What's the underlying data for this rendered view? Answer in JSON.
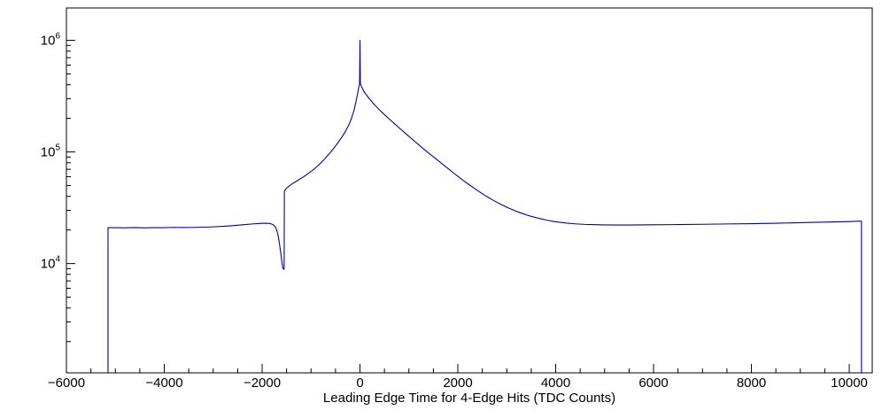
{
  "figure": {
    "background": "#ffffff",
    "frame_color": "#000000"
  },
  "chart_data": {
    "type": "line",
    "title": "",
    "xlabel": "Leading Edge Time for 4-Edge Hits (TDC Counts)",
    "ylabel": "",
    "y_scale": "log",
    "x_range": [
      -6000,
      10470
    ],
    "y_range": [
      1050,
      1950000
    ],
    "grid": false,
    "legend": "none",
    "line_color": "#0000a0",
    "x_ticks": [
      {
        "value": -6000,
        "label": "−6000"
      },
      {
        "value": -4000,
        "label": "−4000"
      },
      {
        "value": -2000,
        "label": "−2000"
      },
      {
        "value": 0,
        "label": "0"
      },
      {
        "value": 2000,
        "label": "2000"
      },
      {
        "value": 4000,
        "label": "4000"
      },
      {
        "value": 6000,
        "label": "6000"
      },
      {
        "value": 8000,
        "label": "8000"
      },
      {
        "value": 10000,
        "label": "10000"
      }
    ],
    "y_ticks": [
      {
        "value": 10000,
        "base": "10",
        "exp": "4"
      },
      {
        "value": 100000,
        "base": "10",
        "exp": "5"
      },
      {
        "value": 1000000,
        "base": "10",
        "exp": "6"
      }
    ],
    "x_minor_step": 500,
    "points": [
      [
        -5150,
        1050
      ],
      [
        -5150,
        21000
      ],
      [
        -5000,
        21000
      ],
      [
        -4800,
        20900
      ],
      [
        -4600,
        21050
      ],
      [
        -4400,
        20900
      ],
      [
        -4200,
        21000
      ],
      [
        -4000,
        21000
      ],
      [
        -3800,
        21100
      ],
      [
        -3600,
        21050
      ],
      [
        -3400,
        21100
      ],
      [
        -3200,
        21200
      ],
      [
        -3000,
        21350
      ],
      [
        -2800,
        21550
      ],
      [
        -2600,
        21850
      ],
      [
        -2400,
        22250
      ],
      [
        -2200,
        22650
      ],
      [
        -2050,
        22900
      ],
      [
        -1950,
        23000
      ],
      [
        -1850,
        22900
      ],
      [
        -1780,
        22400
      ],
      [
        -1720,
        21000
      ],
      [
        -1680,
        18500
      ],
      [
        -1650,
        15500
      ],
      [
        -1620,
        12500
      ],
      [
        -1595,
        10200
      ],
      [
        -1575,
        9100
      ],
      [
        -1560,
        8900
      ],
      [
        -1550,
        9000
      ],
      [
        -1545,
        44000
      ],
      [
        -1520,
        46500
      ],
      [
        -1450,
        49500
      ],
      [
        -1350,
        53000
      ],
      [
        -1250,
        56500
      ],
      [
        -1150,
        60000
      ],
      [
        -1050,
        64500
      ],
      [
        -950,
        69500
      ],
      [
        -850,
        76000
      ],
      [
        -750,
        84000
      ],
      [
        -650,
        94000
      ],
      [
        -550,
        106000
      ],
      [
        -450,
        121000
      ],
      [
        -350,
        140000
      ],
      [
        -280,
        158000
      ],
      [
        -220,
        178000
      ],
      [
        -170,
        202000
      ],
      [
        -120,
        238000
      ],
      [
        -80,
        285000
      ],
      [
        -50,
        330000
      ],
      [
        -25,
        380000
      ],
      [
        -8,
        408000
      ],
      [
        0,
        1000000
      ],
      [
        8,
        408000
      ],
      [
        30,
        388000
      ],
      [
        60,
        362000
      ],
      [
        100,
        338000
      ],
      [
        150,
        316000
      ],
      [
        200,
        297000
      ],
      [
        300,
        264000
      ],
      [
        400,
        238000
      ],
      [
        500,
        216000
      ],
      [
        600,
        197000
      ],
      [
        700,
        180000
      ],
      [
        800,
        164500
      ],
      [
        900,
        150500
      ],
      [
        1000,
        138000
      ],
      [
        1100,
        126500
      ],
      [
        1200,
        116000
      ],
      [
        1300,
        106500
      ],
      [
        1400,
        98000
      ],
      [
        1500,
        90500
      ],
      [
        1600,
        83500
      ],
      [
        1700,
        77000
      ],
      [
        1800,
        71000
      ],
      [
        1900,
        65500
      ],
      [
        2000,
        60500
      ],
      [
        2100,
        56000
      ],
      [
        2200,
        52000
      ],
      [
        2300,
        48500
      ],
      [
        2400,
        45200
      ],
      [
        2500,
        42300
      ],
      [
        2600,
        39700
      ],
      [
        2700,
        37400
      ],
      [
        2800,
        35400
      ],
      [
        2900,
        33600
      ],
      [
        3000,
        32000
      ],
      [
        3100,
        30600
      ],
      [
        3200,
        29400
      ],
      [
        3300,
        28300
      ],
      [
        3400,
        27300
      ],
      [
        3500,
        26500
      ],
      [
        3600,
        25800
      ],
      [
        3700,
        25200
      ],
      [
        3800,
        24600
      ],
      [
        3900,
        24100
      ],
      [
        4000,
        23700
      ],
      [
        4200,
        23100
      ],
      [
        4400,
        22700
      ],
      [
        4600,
        22450
      ],
      [
        4800,
        22300
      ],
      [
        5000,
        22200
      ],
      [
        5250,
        22150
      ],
      [
        5500,
        22150
      ],
      [
        5750,
        22200
      ],
      [
        6000,
        22250
      ],
      [
        6500,
        22350
      ],
      [
        7000,
        22500
      ],
      [
        7500,
        22650
      ],
      [
        8000,
        22800
      ],
      [
        8500,
        23000
      ],
      [
        9000,
        23250
      ],
      [
        9500,
        23500
      ],
      [
        10000,
        23800
      ],
      [
        10150,
        23950
      ],
      [
        10250,
        23950
      ],
      [
        10250,
        1050
      ]
    ]
  }
}
